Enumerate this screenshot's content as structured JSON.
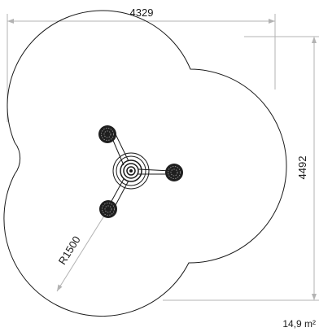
{
  "dimensions": {
    "width_label": "4329",
    "height_label": "4492",
    "radius_label": "R1500"
  },
  "area": {
    "label": "14,9 m²"
  },
  "colors": {
    "outline": "#1a1a1a",
    "dimension_line": "#b3b3b3",
    "seat_fill": "#1f1f1f"
  }
}
